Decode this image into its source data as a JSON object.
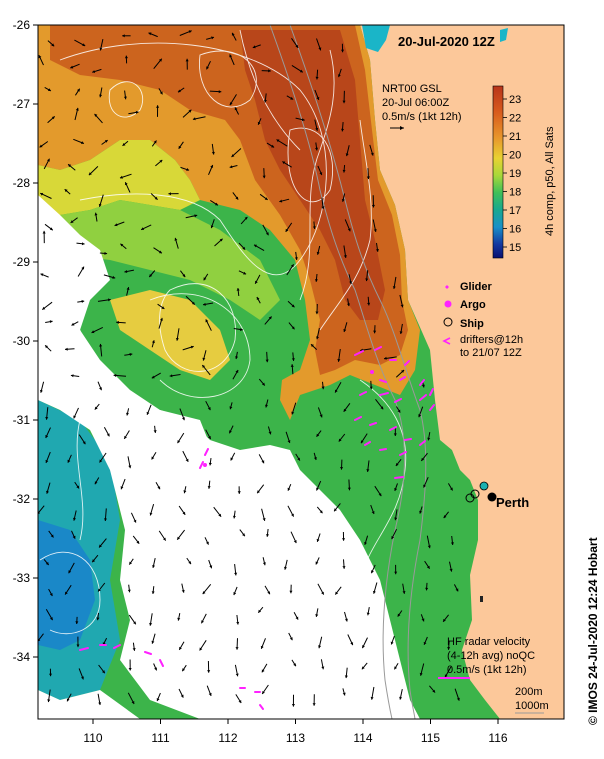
{
  "map": {
    "date_title": "20-Jul-2020 12Z",
    "product": {
      "line1": "NRT00 GSL",
      "line2": "20-Jul 06:00Z",
      "line3": "0.5m/s (1kt 12h)"
    },
    "colorbar": {
      "label": "4h comp, p50, All Sats",
      "ticks": [
        "23",
        "22",
        "21",
        "20",
        "19",
        "18",
        "17",
        "16",
        "15"
      ],
      "colors": [
        "#c8401a",
        "#d8601c",
        "#e5902a",
        "#e6c830",
        "#b8d838",
        "#60c850",
        "#20b070",
        "#18a8b8",
        "#1870c8",
        "#1030a0",
        "#0a1470"
      ]
    },
    "legend": {
      "glider": "Glider",
      "argo": "Argo",
      "ship": "Ship",
      "drifters1": "drifters@12h",
      "drifters2": "to 21/07 12Z"
    },
    "place": "Perth",
    "hf_radar": {
      "line1": "HF radar velocity",
      "line2": "(4-12h avg) noQC",
      "line3": "0.5m/s (1kt 12h)"
    },
    "isobaths": {
      "a": "200m",
      "b": "1000m"
    },
    "credit": "© IMOS 24-Jul-2020 12:24 Hobart",
    "y_ticks": [
      "-26",
      "-27",
      "-28",
      "-29",
      "-30",
      "-31",
      "-32",
      "-33",
      "-34"
    ],
    "x_ticks": [
      "110",
      "111",
      "112",
      "113",
      "114",
      "115",
      "116"
    ],
    "colors": {
      "land": "#fcc89a",
      "ocean_warm": "#c0541e",
      "ocean_green": "#3cb44a"
    }
  }
}
